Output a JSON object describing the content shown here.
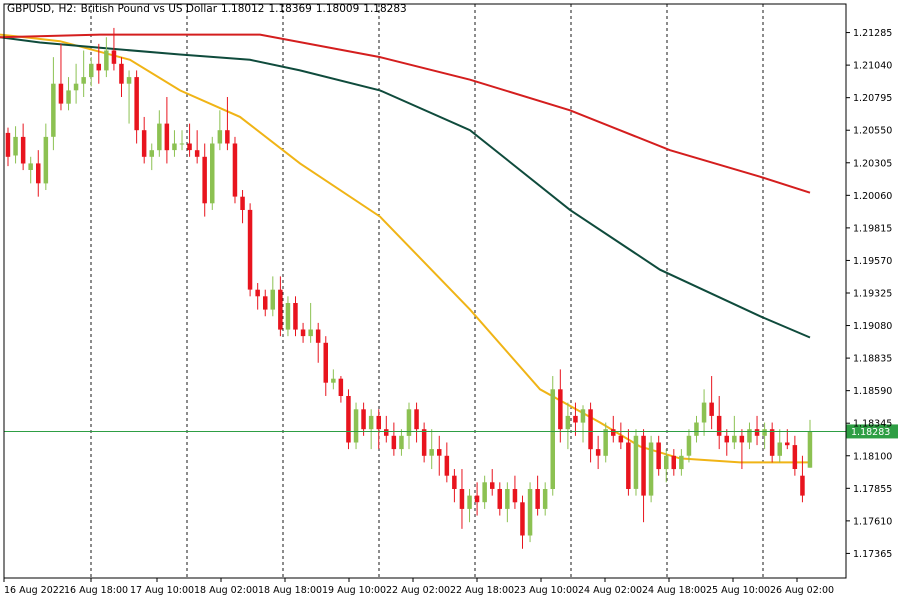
{
  "header": {
    "symbol": "GBPUSD",
    "timeframe": "H2",
    "description": "British Pound vs US Dollar",
    "open": "1.18012",
    "high": "1.18369",
    "low": "1.18009",
    "close": "1.18283"
  },
  "colors": {
    "bull": "#8cc152",
    "bear": "#e8141e",
    "ma_fast": "#f0b416",
    "ma_mid": "#0f4b3c",
    "ma_slow": "#d41e1e",
    "price_line": "#2e9e44",
    "grid": "#1a1a1a"
  },
  "chart_data": {
    "type": "candlestick",
    "title": "GBPUSD, H2: British Pound vs US Dollar",
    "ylim": [
      1.1718,
      1.215
    ],
    "y_ticks": [
      "1.21285",
      "1.21040",
      "1.20795",
      "1.20550",
      "1.20305",
      "1.20060",
      "1.19815",
      "1.19570",
      "1.19325",
      "1.19080",
      "1.18835",
      "1.18590",
      "1.18345",
      "1.18100",
      "1.17855",
      "1.17610",
      "1.17365"
    ],
    "current_price": "1.18283",
    "x_labels": [
      "16 Aug 2022",
      "16 Aug 18:00",
      "17 Aug 10:00",
      "18 Aug 02:00",
      "18 Aug 18:00",
      "19 Aug 10:00",
      "22 Aug 02:00",
      "22 Aug 18:00",
      "23 Aug 10:00",
      "24 Aug 02:00",
      "24 Aug 18:00",
      "25 Aug 10:00",
      "26 Aug 02:00"
    ],
    "candles": [
      {
        "o": 1.2053,
        "h": 1.2057,
        "l": 1.2028,
        "c": 1.2035
      },
      {
        "o": 1.2036,
        "h": 1.2058,
        "l": 1.203,
        "c": 1.205
      },
      {
        "o": 1.205,
        "h": 1.206,
        "l": 1.2025,
        "c": 1.203
      },
      {
        "o": 1.2025,
        "h": 1.2035,
        "l": 1.2015,
        "c": 1.203
      },
      {
        "o": 1.203,
        "h": 1.204,
        "l": 1.2005,
        "c": 1.2015
      },
      {
        "o": 1.2015,
        "h": 1.206,
        "l": 1.201,
        "c": 1.205
      },
      {
        "o": 1.205,
        "h": 1.211,
        "l": 1.204,
        "c": 1.209
      },
      {
        "o": 1.209,
        "h": 1.212,
        "l": 1.207,
        "c": 1.2075
      },
      {
        "o": 1.2075,
        "h": 1.2095,
        "l": 1.207,
        "c": 1.2085
      },
      {
        "o": 1.2085,
        "h": 1.2105,
        "l": 1.2075,
        "c": 1.209
      },
      {
        "o": 1.209,
        "h": 1.2115,
        "l": 1.208,
        "c": 1.2095
      },
      {
        "o": 1.2095,
        "h": 1.211,
        "l": 1.2088,
        "c": 1.2105
      },
      {
        "o": 1.2105,
        "h": 1.212,
        "l": 1.209,
        "c": 1.21
      },
      {
        "o": 1.21,
        "h": 1.2125,
        "l": 1.2095,
        "c": 1.2115
      },
      {
        "o": 1.2115,
        "h": 1.2132,
        "l": 1.21,
        "c": 1.2105
      },
      {
        "o": 1.2105,
        "h": 1.211,
        "l": 1.208,
        "c": 1.209
      },
      {
        "o": 1.209,
        "h": 1.21,
        "l": 1.206,
        "c": 1.2095
      },
      {
        "o": 1.2095,
        "h": 1.21,
        "l": 1.2045,
        "c": 1.2055
      },
      {
        "o": 1.2055,
        "h": 1.2065,
        "l": 1.203,
        "c": 1.2035
      },
      {
        "o": 1.2035,
        "h": 1.2045,
        "l": 1.2025,
        "c": 1.204
      },
      {
        "o": 1.204,
        "h": 1.207,
        "l": 1.2035,
        "c": 1.206
      },
      {
        "o": 1.206,
        "h": 1.208,
        "l": 1.203,
        "c": 1.204
      },
      {
        "o": 1.204,
        "h": 1.2055,
        "l": 1.2035,
        "c": 1.2045
      },
      {
        "o": 1.2045,
        "h": 1.2055,
        "l": 1.204,
        "c": 1.2045
      },
      {
        "o": 1.2045,
        "h": 1.206,
        "l": 1.2035,
        "c": 1.204
      },
      {
        "o": 1.204,
        "h": 1.2055,
        "l": 1.203,
        "c": 1.2035
      },
      {
        "o": 1.2035,
        "h": 1.2045,
        "l": 1.199,
        "c": 1.2
      },
      {
        "o": 1.2,
        "h": 1.205,
        "l": 1.1995,
        "c": 1.2045
      },
      {
        "o": 1.2045,
        "h": 1.207,
        "l": 1.204,
        "c": 1.2055
      },
      {
        "o": 1.2055,
        "h": 1.208,
        "l": 1.204,
        "c": 1.2045
      },
      {
        "o": 1.2045,
        "h": 1.205,
        "l": 1.2,
        "c": 1.2005
      },
      {
        "o": 1.2005,
        "h": 1.201,
        "l": 1.1985,
        "c": 1.1995
      },
      {
        "o": 1.1995,
        "h": 1.2,
        "l": 1.193,
        "c": 1.1935
      },
      {
        "o": 1.1935,
        "h": 1.194,
        "l": 1.192,
        "c": 1.193
      },
      {
        "o": 1.193,
        "h": 1.1935,
        "l": 1.1915,
        "c": 1.192
      },
      {
        "o": 1.192,
        "h": 1.1945,
        "l": 1.1915,
        "c": 1.1935
      },
      {
        "o": 1.1935,
        "h": 1.1945,
        "l": 1.19,
        "c": 1.1905
      },
      {
        "o": 1.1905,
        "h": 1.193,
        "l": 1.19,
        "c": 1.1925
      },
      {
        "o": 1.1925,
        "h": 1.193,
        "l": 1.19,
        "c": 1.1905
      },
      {
        "o": 1.1905,
        "h": 1.191,
        "l": 1.1895,
        "c": 1.19
      },
      {
        "o": 1.19,
        "h": 1.1925,
        "l": 1.1895,
        "c": 1.1905
      },
      {
        "o": 1.1905,
        "h": 1.191,
        "l": 1.188,
        "c": 1.1895
      },
      {
        "o": 1.1895,
        "h": 1.19,
        "l": 1.1855,
        "c": 1.1865
      },
      {
        "o": 1.1865,
        "h": 1.1875,
        "l": 1.186,
        "c": 1.1868
      },
      {
        "o": 1.1868,
        "h": 1.187,
        "l": 1.185,
        "c": 1.1855
      },
      {
        "o": 1.1855,
        "h": 1.186,
        "l": 1.1815,
        "c": 1.182
      },
      {
        "o": 1.182,
        "h": 1.185,
        "l": 1.1815,
        "c": 1.1845
      },
      {
        "o": 1.1845,
        "h": 1.185,
        "l": 1.1825,
        "c": 1.183
      },
      {
        "o": 1.183,
        "h": 1.1845,
        "l": 1.1815,
        "c": 1.184
      },
      {
        "o": 1.184,
        "h": 1.1845,
        "l": 1.1815,
        "c": 1.183
      },
      {
        "o": 1.183,
        "h": 1.184,
        "l": 1.182,
        "c": 1.1825
      },
      {
        "o": 1.1825,
        "h": 1.1835,
        "l": 1.181,
        "c": 1.1815
      },
      {
        "o": 1.1815,
        "h": 1.183,
        "l": 1.181,
        "c": 1.1825
      },
      {
        "o": 1.1825,
        "h": 1.185,
        "l": 1.1815,
        "c": 1.1845
      },
      {
        "o": 1.1845,
        "h": 1.185,
        "l": 1.182,
        "c": 1.183
      },
      {
        "o": 1.183,
        "h": 1.1835,
        "l": 1.1805,
        "c": 1.181
      },
      {
        "o": 1.181,
        "h": 1.183,
        "l": 1.18,
        "c": 1.1815
      },
      {
        "o": 1.1815,
        "h": 1.1825,
        "l": 1.1795,
        "c": 1.181
      },
      {
        "o": 1.181,
        "h": 1.182,
        "l": 1.179,
        "c": 1.1795
      },
      {
        "o": 1.1795,
        "h": 1.18,
        "l": 1.1775,
        "c": 1.1785
      },
      {
        "o": 1.1785,
        "h": 1.18,
        "l": 1.1755,
        "c": 1.177
      },
      {
        "o": 1.177,
        "h": 1.1785,
        "l": 1.176,
        "c": 1.178
      },
      {
        "o": 1.178,
        "h": 1.179,
        "l": 1.1765,
        "c": 1.1775
      },
      {
        "o": 1.1775,
        "h": 1.1795,
        "l": 1.177,
        "c": 1.179
      },
      {
        "o": 1.179,
        "h": 1.18,
        "l": 1.178,
        "c": 1.1785
      },
      {
        "o": 1.1785,
        "h": 1.179,
        "l": 1.1765,
        "c": 1.177
      },
      {
        "o": 1.177,
        "h": 1.179,
        "l": 1.176,
        "c": 1.1785
      },
      {
        "o": 1.1785,
        "h": 1.1795,
        "l": 1.177,
        "c": 1.1775
      },
      {
        "o": 1.1775,
        "h": 1.178,
        "l": 1.174,
        "c": 1.175
      },
      {
        "o": 1.175,
        "h": 1.179,
        "l": 1.1745,
        "c": 1.1785
      },
      {
        "o": 1.1785,
        "h": 1.1795,
        "l": 1.1765,
        "c": 1.177
      },
      {
        "o": 1.177,
        "h": 1.179,
        "l": 1.1765,
        "c": 1.1785
      },
      {
        "o": 1.1785,
        "h": 1.187,
        "l": 1.178,
        "c": 1.186
      },
      {
        "o": 1.186,
        "h": 1.1875,
        "l": 1.182,
        "c": 1.183
      },
      {
        "o": 1.183,
        "h": 1.185,
        "l": 1.1815,
        "c": 1.184
      },
      {
        "o": 1.184,
        "h": 1.185,
        "l": 1.1825,
        "c": 1.1835
      },
      {
        "o": 1.1835,
        "h": 1.1848,
        "l": 1.182,
        "c": 1.1845
      },
      {
        "o": 1.1845,
        "h": 1.185,
        "l": 1.1805,
        "c": 1.1815
      },
      {
        "o": 1.1815,
        "h": 1.1825,
        "l": 1.18,
        "c": 1.181
      },
      {
        "o": 1.181,
        "h": 1.1835,
        "l": 1.1805,
        "c": 1.183
      },
      {
        "o": 1.183,
        "h": 1.184,
        "l": 1.182,
        "c": 1.1825
      },
      {
        "o": 1.1825,
        "h": 1.1835,
        "l": 1.1815,
        "c": 1.182
      },
      {
        "o": 1.182,
        "h": 1.183,
        "l": 1.178,
        "c": 1.1785
      },
      {
        "o": 1.1785,
        "h": 1.183,
        "l": 1.178,
        "c": 1.1825
      },
      {
        "o": 1.1825,
        "h": 1.183,
        "l": 1.176,
        "c": 1.178
      },
      {
        "o": 1.178,
        "h": 1.1825,
        "l": 1.1775,
        "c": 1.182
      },
      {
        "o": 1.182,
        "h": 1.1825,
        "l": 1.1795,
        "c": 1.18
      },
      {
        "o": 1.18,
        "h": 1.1815,
        "l": 1.179,
        "c": 1.181
      },
      {
        "o": 1.181,
        "h": 1.1815,
        "l": 1.1795,
        "c": 1.18
      },
      {
        "o": 1.18,
        "h": 1.1815,
        "l": 1.1795,
        "c": 1.181
      },
      {
        "o": 1.181,
        "h": 1.183,
        "l": 1.1805,
        "c": 1.1825
      },
      {
        "o": 1.1825,
        "h": 1.184,
        "l": 1.182,
        "c": 1.1835
      },
      {
        "o": 1.1835,
        "h": 1.186,
        "l": 1.1825,
        "c": 1.185
      },
      {
        "o": 1.185,
        "h": 1.187,
        "l": 1.183,
        "c": 1.184
      },
      {
        "o": 1.184,
        "h": 1.1855,
        "l": 1.1815,
        "c": 1.1825
      },
      {
        "o": 1.1825,
        "h": 1.183,
        "l": 1.181,
        "c": 1.182
      },
      {
        "o": 1.182,
        "h": 1.184,
        "l": 1.1815,
        "c": 1.1825
      },
      {
        "o": 1.1825,
        "h": 1.183,
        "l": 1.18,
        "c": 1.182
      },
      {
        "o": 1.182,
        "h": 1.1835,
        "l": 1.1815,
        "c": 1.183
      },
      {
        "o": 1.183,
        "h": 1.184,
        "l": 1.1818,
        "c": 1.1825
      },
      {
        "o": 1.1825,
        "h": 1.1835,
        "l": 1.1815,
        "c": 1.183
      },
      {
        "o": 1.183,
        "h": 1.1835,
        "l": 1.1805,
        "c": 1.181
      },
      {
        "o": 1.181,
        "h": 1.183,
        "l": 1.1805,
        "c": 1.182
      },
      {
        "o": 1.182,
        "h": 1.183,
        "l": 1.1815,
        "c": 1.1818
      },
      {
        "o": 1.1818,
        "h": 1.1825,
        "l": 1.1795,
        "c": 1.18
      },
      {
        "o": 1.1795,
        "h": 1.181,
        "l": 1.1775,
        "c": 1.178
      },
      {
        "o": 1.1801,
        "h": 1.1837,
        "l": 1.1801,
        "c": 1.1828
      }
    ],
    "moving_averages": [
      {
        "color": "ma_fast",
        "points": [
          [
            0,
            1.2127
          ],
          [
            25,
            1.2125
          ],
          [
            60,
            1.2122
          ],
          [
            130,
            1.2108
          ],
          [
            180,
            1.2085
          ],
          [
            240,
            1.2065
          ],
          [
            300,
            1.203
          ],
          [
            380,
            1.199
          ],
          [
            470,
            1.192
          ],
          [
            540,
            1.186
          ],
          [
            600,
            1.1835
          ],
          [
            640,
            1.1817
          ],
          [
            680,
            1.1808
          ],
          [
            740,
            1.1805
          ],
          [
            810,
            1.1805
          ]
        ]
      },
      {
        "color": "ma_mid",
        "points": [
          [
            0,
            1.2125
          ],
          [
            40,
            1.2121
          ],
          [
            100,
            1.2117
          ],
          [
            180,
            1.2112
          ],
          [
            250,
            1.2108
          ],
          [
            300,
            1.21
          ],
          [
            380,
            1.2085
          ],
          [
            470,
            1.2055
          ],
          [
            570,
            1.1995
          ],
          [
            660,
            1.195
          ],
          [
            760,
            1.1915
          ],
          [
            810,
            1.1899
          ]
        ]
      },
      {
        "color": "ma_slow",
        "points": [
          [
            0,
            1.2125
          ],
          [
            100,
            1.2127
          ],
          [
            260,
            1.2127
          ],
          [
            380,
            1.211
          ],
          [
            470,
            1.2093
          ],
          [
            570,
            1.207
          ],
          [
            670,
            1.204
          ],
          [
            760,
            1.202
          ],
          [
            810,
            1.2008
          ]
        ]
      }
    ]
  }
}
